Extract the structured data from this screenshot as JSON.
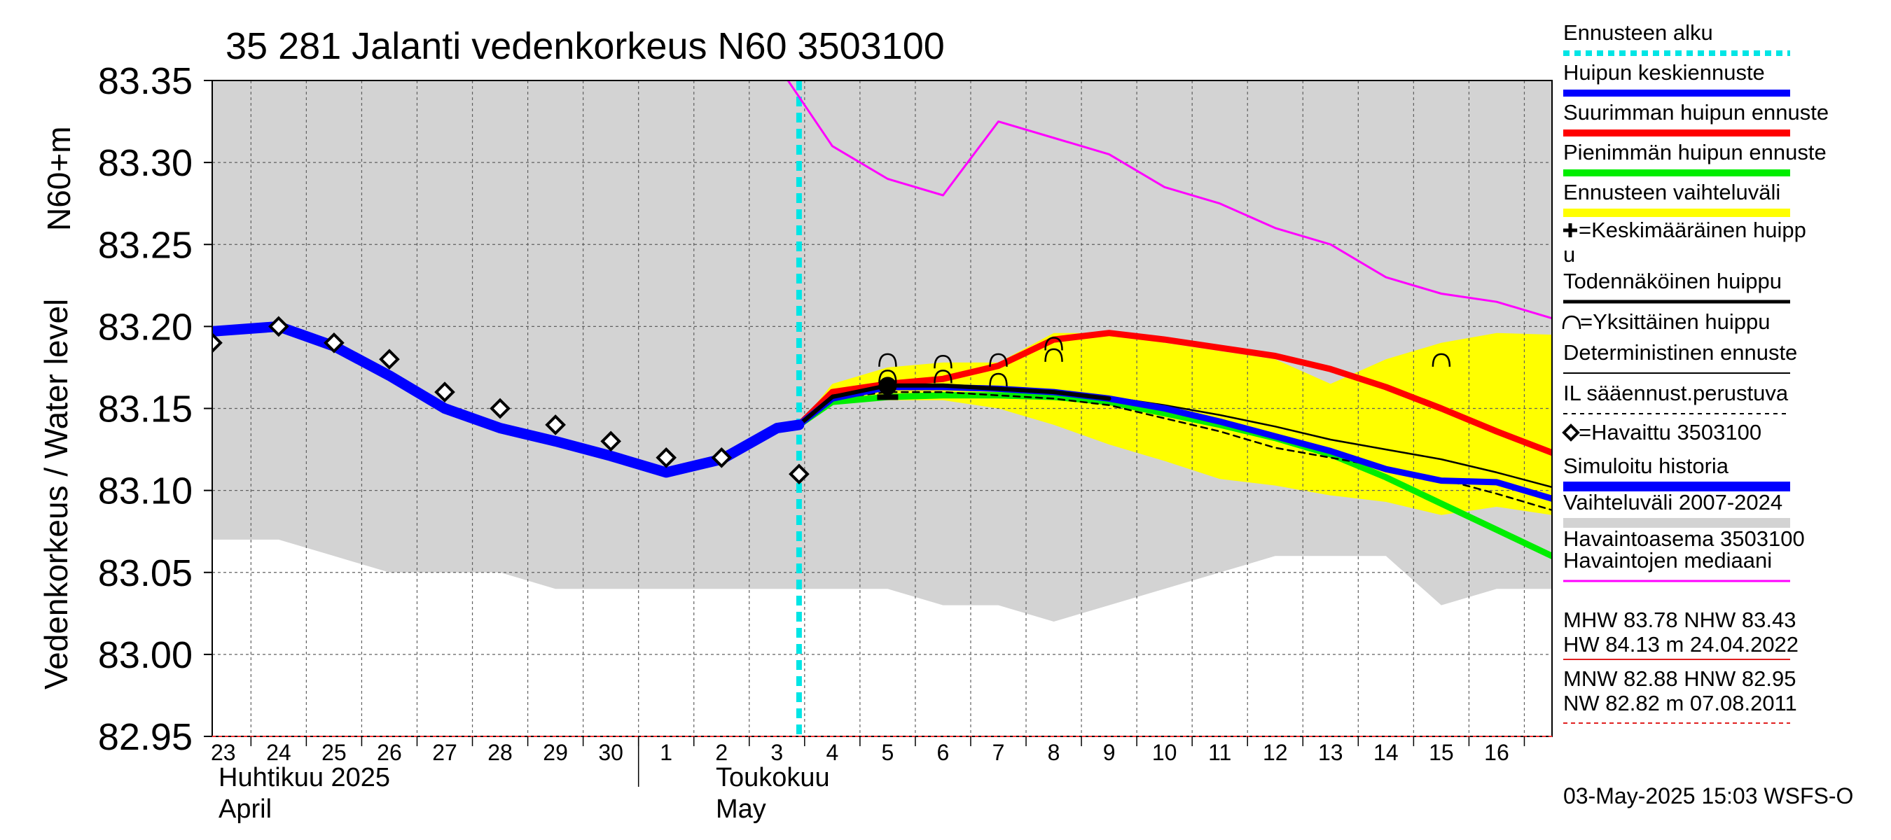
{
  "chart_data": {
    "type": "line",
    "title": "35 281 Jalanti vedenkorkeus N60 3503100",
    "ylabel_top": "N60+m",
    "ylabel": "Vedenkorkeus / Water level",
    "ylim": [
      82.95,
      83.35
    ],
    "yticks": [
      "83.35",
      "83.30",
      "83.25",
      "83.20",
      "83.15",
      "83.10",
      "83.05",
      "83.00",
      "82.95"
    ],
    "x_range_days": [
      -0.2,
      24.0
    ],
    "x_ticks": [
      "23",
      "24",
      "25",
      "26",
      "27",
      "28",
      "29",
      "30",
      "1",
      "2",
      "3",
      "4",
      "5",
      "6",
      "7",
      "8",
      "9",
      "10",
      "11",
      "12",
      "13",
      "14",
      "15",
      "16"
    ],
    "month_labels": [
      {
        "fi": "Huhtikuu  2025",
        "en": "April",
        "day_index": 0
      },
      {
        "fi": "Toukokuu",
        "en": "May",
        "day_index": 9
      }
    ],
    "forecast_start_day": 10.4,
    "grid": true,
    "series": [
      {
        "name": "Vaihteluväli 2007-2024 Havaintoasema 3503100",
        "kind": "band",
        "color": "#d3d3d3",
        "x": [
          -0.2,
          0,
          1,
          2,
          3,
          4,
          5,
          6,
          7,
          8,
          9,
          10,
          11,
          12,
          13,
          14,
          15,
          16,
          17,
          18,
          19,
          20,
          21,
          22,
          23,
          24.0
        ],
        "upper": [
          83.35,
          83.35,
          83.35,
          83.35,
          83.35,
          83.35,
          83.35,
          83.35,
          83.35,
          83.35,
          83.35,
          83.35,
          83.35,
          83.35,
          83.35,
          83.35,
          83.35,
          83.35,
          83.35,
          83.35,
          83.35,
          83.35,
          83.35,
          83.35,
          83.35,
          83.35
        ],
        "lower": [
          83.07,
          83.07,
          83.07,
          83.06,
          83.05,
          83.05,
          83.05,
          83.04,
          83.04,
          83.04,
          83.04,
          83.04,
          83.04,
          83.04,
          83.03,
          83.03,
          83.02,
          83.03,
          83.04,
          83.05,
          83.06,
          83.06,
          83.06,
          83.03,
          83.04,
          83.04
        ]
      },
      {
        "name": "Ennusteen vaihteluväli",
        "kind": "band",
        "color": "#ffff00",
        "x": [
          10.4,
          11,
          12,
          13,
          14,
          15,
          16,
          17,
          18,
          19,
          20,
          21,
          22,
          23,
          24.0
        ],
        "upper": [
          83.14,
          83.165,
          83.175,
          83.178,
          83.178,
          83.196,
          83.196,
          83.19,
          83.185,
          83.18,
          83.165,
          83.18,
          83.19,
          83.196,
          83.195
        ],
        "lower": [
          83.14,
          83.153,
          83.155,
          83.155,
          83.15,
          83.14,
          83.128,
          83.118,
          83.107,
          83.103,
          83.097,
          83.093,
          83.085,
          83.09,
          83.085
        ]
      },
      {
        "name": "Havaintojen mediaani",
        "kind": "line",
        "color": "#ff00ff",
        "width": 3,
        "x": [
          10.0,
          10.2,
          11,
          12,
          13,
          14,
          15,
          16,
          17,
          18,
          19,
          20,
          21,
          22,
          23,
          24.0
        ],
        "values": [
          83.4,
          83.35,
          83.31,
          83.29,
          83.28,
          83.325,
          83.315,
          83.305,
          83.285,
          83.275,
          83.26,
          83.25,
          83.23,
          83.22,
          83.215,
          83.205
        ]
      },
      {
        "name": "Suurimman huipun ennuste",
        "kind": "line",
        "color": "#ff0000",
        "width": 9,
        "x": [
          10.4,
          11,
          12,
          13,
          14,
          15,
          16,
          17,
          18,
          19,
          20,
          21,
          22,
          23,
          24.0
        ],
        "values": [
          83.14,
          83.16,
          83.165,
          83.168,
          83.176,
          83.192,
          83.196,
          83.192,
          83.187,
          83.182,
          83.174,
          83.163,
          83.15,
          83.136,
          83.123
        ]
      },
      {
        "name": "Pienimmän huipun ennuste",
        "kind": "line",
        "color": "#00ee00",
        "width": 9,
        "x": [
          10.4,
          11,
          12,
          13,
          14,
          15,
          16,
          17,
          18,
          19,
          20,
          21,
          22,
          23,
          24.0
        ],
        "values": [
          83.14,
          83.154,
          83.157,
          83.158,
          83.158,
          83.157,
          83.154,
          83.147,
          83.14,
          83.132,
          83.122,
          83.108,
          83.092,
          83.076,
          83.06
        ]
      },
      {
        "name": "IL sääennust.perustuva",
        "kind": "line",
        "color": "#000000",
        "width": 2.5,
        "dash": "9 7",
        "x": [
          10.4,
          11,
          12,
          13,
          14,
          15,
          16,
          17,
          18,
          19,
          20,
          21,
          22,
          23,
          24.0
        ],
        "values": [
          83.14,
          83.156,
          83.16,
          83.16,
          83.158,
          83.156,
          83.152,
          83.144,
          83.136,
          83.126,
          83.12,
          83.114,
          83.107,
          83.098,
          83.088
        ]
      },
      {
        "name": "Deterministinen ennuste",
        "kind": "line",
        "color": "#000000",
        "width": 2.5,
        "x": [
          10.4,
          11,
          12,
          13,
          14,
          15,
          16,
          17,
          18,
          19,
          20,
          21,
          22,
          23,
          24.0
        ],
        "values": [
          83.14,
          83.158,
          83.163,
          83.163,
          83.162,
          83.16,
          83.157,
          83.152,
          83.146,
          83.139,
          83.131,
          83.125,
          83.119,
          83.111,
          83.102
        ]
      },
      {
        "name": "Huipun keskiennuste",
        "kind": "line",
        "color": "#0000ff",
        "width": 9,
        "x": [
          10.4,
          11,
          12,
          13,
          14,
          15,
          16,
          17,
          18,
          19,
          20,
          21,
          22,
          23,
          24.0
        ],
        "values": [
          83.14,
          83.156,
          83.163,
          83.163,
          83.162,
          83.16,
          83.156,
          83.15,
          83.142,
          83.133,
          83.124,
          83.113,
          83.106,
          83.105,
          83.095
        ]
      },
      {
        "name": "Todennäköinen huippu",
        "kind": "line",
        "color": "#000000",
        "width": 6,
        "x": [
          10.4,
          11,
          12,
          13,
          14,
          15,
          16
        ],
        "values": [
          83.14,
          83.157,
          83.164,
          83.164,
          83.162,
          83.16,
          83.156
        ]
      },
      {
        "name": "Simuloitu historia",
        "kind": "line",
        "color": "#0000ff",
        "width": 15,
        "x": [
          -0.2,
          1,
          2,
          3,
          4,
          5,
          6,
          7,
          8,
          9,
          10,
          10.4
        ],
        "values": [
          83.197,
          83.2,
          83.188,
          83.17,
          83.15,
          83.138,
          83.13,
          83.121,
          83.111,
          83.119,
          83.138,
          83.14
        ]
      },
      {
        "name": "Havaittu 3503100",
        "kind": "markers",
        "marker": "diamond",
        "color": "#000000",
        "x": [
          -0.2,
          1,
          2,
          3,
          4,
          5,
          6,
          7,
          8,
          9,
          10.4
        ],
        "values": [
          83.19,
          83.2,
          83.19,
          83.18,
          83.16,
          83.15,
          83.14,
          83.13,
          83.12,
          83.12,
          83.11
        ]
      },
      {
        "name": "Yksittäinen huippu",
        "kind": "markers",
        "marker": "arc",
        "color": "#000000",
        "x": [
          12.0,
          12.0,
          13.0,
          13.0,
          14.0,
          14.0,
          15.0,
          15.0,
          22.0
        ],
        "values": [
          83.178,
          83.168,
          83.177,
          83.168,
          83.178,
          83.166,
          83.188,
          83.181,
          83.178
        ]
      },
      {
        "name": "Keskimääräinen huippu",
        "kind": "markers",
        "marker": "plus",
        "color": "#000000",
        "x": [
          12.0
        ],
        "values": [
          83.162
        ]
      }
    ]
  },
  "legend": [
    {
      "label": "Ennusteen alku",
      "kind": "line",
      "color": "#00e5e5",
      "width": 8,
      "dash": "9 7"
    },
    {
      "label": "Huipun keskiennuste",
      "kind": "line",
      "color": "#0000ff",
      "width": 10
    },
    {
      "label": "Suurimman huipun ennuste",
      "kind": "line",
      "color": "#ff0000",
      "width": 10
    },
    {
      "label": "Pienimmän huipun ennuste",
      "kind": "line",
      "color": "#00ee00",
      "width": 10
    },
    {
      "label": "Ennusteen vaihteluväli",
      "kind": "line",
      "color": "#ffff00",
      "width": 12
    },
    {
      "label": "=Keskimääräinen huipp",
      "label2": "u",
      "kind": "plus-marker"
    },
    {
      "label": "Todennäköinen huippu",
      "kind": "line",
      "color": "#000000",
      "width": 5
    },
    {
      "label": "=Yksittäinen huippu",
      "kind": "arc-marker"
    },
    {
      "label": "Deterministinen ennuste",
      "kind": "line",
      "color": "#000000",
      "width": 2
    },
    {
      "label": "IL sääennust.perustuva",
      "kind": "line",
      "color": "#000000",
      "width": 2,
      "dash": "6 6"
    },
    {
      "label": "=Havaittu 3503100",
      "kind": "diamond-marker"
    },
    {
      "label": "Simuloitu historia",
      "kind": "line",
      "color": "#0000ff",
      "width": 14
    },
    {
      "label": "Vaihteluväli 2007-2024",
      "label2": " Havaintoasema 3503100",
      "kind": "line",
      "color": "#d3d3d3",
      "width": 14
    },
    {
      "label": "Havaintojen mediaani",
      "kind": "line",
      "color": "#ff00ff",
      "width": 3
    }
  ],
  "stats": {
    "line1": "MHW  83.78 NHW  83.43",
    "line2": "HW  84.13 m 24.04.2022",
    "line3": "MNW  82.88 HNW  82.95",
    "line4": "NW  82.82 m 07.08.2011"
  },
  "footer": "03-May-2025 15:03 WSFS-O"
}
